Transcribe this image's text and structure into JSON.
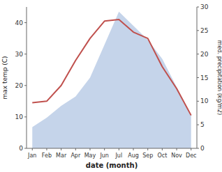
{
  "chart_data": {
    "type": "line",
    "categories": [
      "Jan",
      "Feb",
      "Mar",
      "Apr",
      "May",
      "Jun",
      "Jul",
      "Aug",
      "Sep",
      "Oct",
      "Nov",
      "Dec"
    ],
    "xlabel": "date (month)",
    "ylabel": "max temp (C)",
    "y2label": "med. precipitation (kg/m2)",
    "series": [
      {
        "type": "area",
        "axis": "y2",
        "color": "#c5d4ea",
        "values": [
          4.5,
          6.5,
          9.0,
          11.0,
          15.0,
          22.0,
          29.0,
          26.0,
          23.0,
          19.0,
          13.0,
          7.0
        ]
      },
      {
        "type": "line",
        "color": "#c0504d",
        "values": [
          14.5,
          15.0,
          20.0,
          28.0,
          35.0,
          40.5,
          41.0,
          37.0,
          35.0,
          26.0,
          19.0,
          10.5
        ]
      }
    ],
    "ylim": [
      0,
      45
    ],
    "yticks": [
      0,
      10,
      20,
      30,
      40
    ],
    "y2lim": [
      0,
      30
    ],
    "y2ticks": [
      0,
      5,
      10,
      15,
      20,
      25,
      30
    ]
  }
}
